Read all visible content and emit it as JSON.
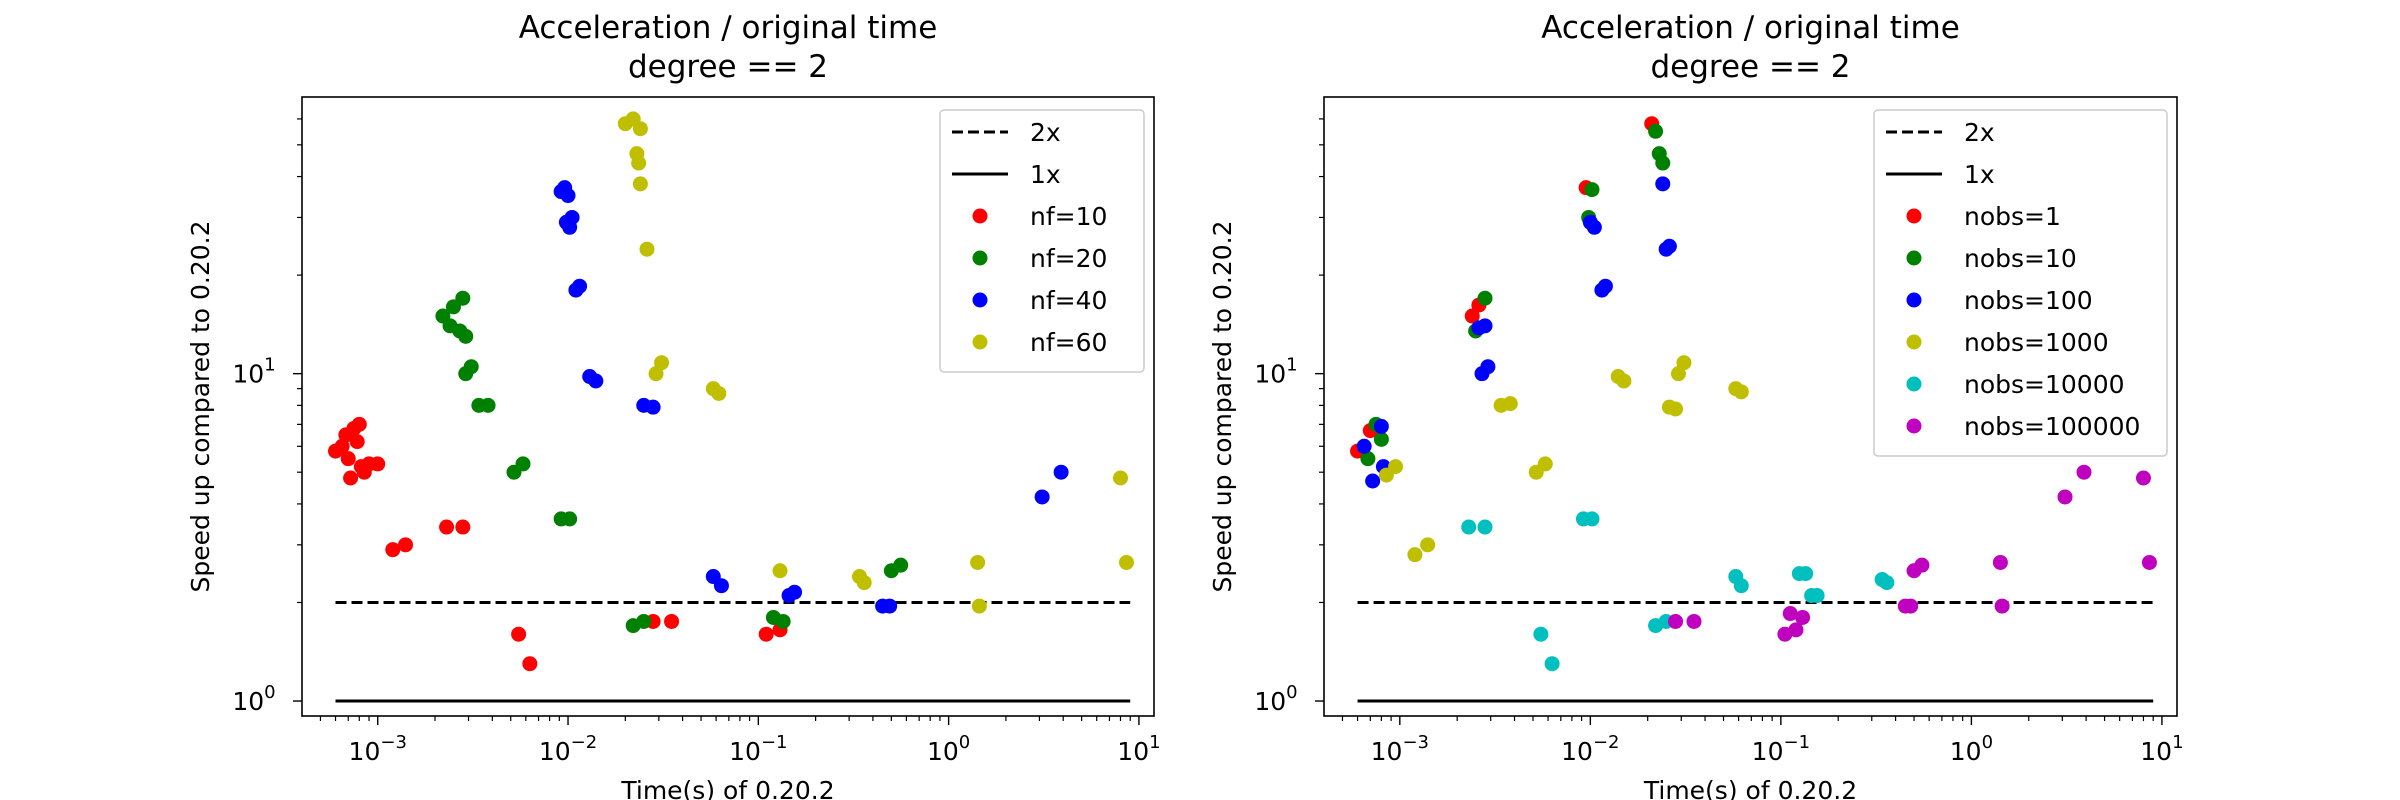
{
  "chart_data": [
    {
      "type": "scatter",
      "title": "Acceleration / original time",
      "subtitle": "degree == 2",
      "xlabel": "Time(s) of 0.20.2",
      "ylabel": "Speed up compared to 0.20.2",
      "x_scale": "log",
      "y_scale": "log",
      "xlim": [
        0.0004,
        12
      ],
      "ylim": [
        0.9,
        70
      ],
      "x_ticks": [
        {
          "v": 0.001,
          "b": "10",
          "e": "−3"
        },
        {
          "v": 0.01,
          "b": "10",
          "e": "−2"
        },
        {
          "v": 0.1,
          "b": "10",
          "e": "−1"
        },
        {
          "v": 1,
          "b": "10",
          "e": "0"
        },
        {
          "v": 10,
          "b": "10",
          "e": "1"
        }
      ],
      "y_ticks": [
        {
          "v": 1,
          "b": "10",
          "e": "0"
        },
        {
          "v": 10,
          "b": "10",
          "e": "1"
        }
      ],
      "grid": false,
      "legend_position": "top-right",
      "reference_lines": [
        {
          "name": "2x",
          "y": 2,
          "x_range": [
            0.0006,
            9
          ],
          "style": "dashed",
          "color": "#000000"
        },
        {
          "name": "1x",
          "y": 1,
          "x_range": [
            0.0006,
            9
          ],
          "style": "solid",
          "color": "#000000"
        }
      ],
      "series": [
        {
          "name": "nf=10",
          "color": "#ff0000",
          "points": [
            [
              0.0006,
              5.8
            ],
            [
              0.00065,
              6.0
            ],
            [
              0.0007,
              5.5
            ],
            [
              0.00068,
              6.5
            ],
            [
              0.00075,
              6.8
            ],
            [
              0.0008,
              7.0
            ],
            [
              0.00078,
              6.2
            ],
            [
              0.00072,
              4.8
            ],
            [
              0.00085,
              5.0
            ],
            [
              0.0009,
              5.3
            ],
            [
              0.00082,
              5.2
            ],
            [
              0.001,
              5.3
            ],
            [
              0.0012,
              2.9
            ],
            [
              0.0014,
              3.0
            ],
            [
              0.0023,
              3.4
            ],
            [
              0.0028,
              3.4
            ],
            [
              0.0055,
              1.6
            ],
            [
              0.0063,
              1.3
            ],
            [
              0.028,
              1.75
            ],
            [
              0.035,
              1.75
            ],
            [
              0.11,
              1.6
            ],
            [
              0.13,
              1.65
            ]
          ]
        },
        {
          "name": "nf=20",
          "color": "#008000",
          "points": [
            [
              0.0022,
              15.0
            ],
            [
              0.0024,
              14.0
            ],
            [
              0.0025,
              16.0
            ],
            [
              0.0027,
              13.5
            ],
            [
              0.0028,
              17.0
            ],
            [
              0.0029,
              13.0
            ],
            [
              0.0029,
              10.0
            ],
            [
              0.0031,
              10.5
            ],
            [
              0.0034,
              8.0
            ],
            [
              0.0038,
              8.0
            ],
            [
              0.0052,
              5.0
            ],
            [
              0.0058,
              5.3
            ],
            [
              0.0092,
              3.6
            ],
            [
              0.0102,
              3.6
            ],
            [
              0.022,
              1.7
            ],
            [
              0.025,
              1.75
            ],
            [
              0.12,
              1.8
            ],
            [
              0.135,
              1.75
            ],
            [
              0.5,
              2.5
            ],
            [
              0.56,
              2.6
            ]
          ]
        },
        {
          "name": "nf=40",
          "color": "#0000ff",
          "points": [
            [
              0.0092,
              36.0
            ],
            [
              0.0096,
              37.0
            ],
            [
              0.01,
              35.0
            ],
            [
              0.0098,
              29.0
            ],
            [
              0.0102,
              28.0
            ],
            [
              0.0105,
              30.0
            ],
            [
              0.011,
              18.0
            ],
            [
              0.0115,
              18.5
            ],
            [
              0.013,
              9.8
            ],
            [
              0.014,
              9.5
            ],
            [
              0.025,
              8.0
            ],
            [
              0.028,
              7.9
            ],
            [
              0.058,
              2.4
            ],
            [
              0.064,
              2.25
            ],
            [
              0.145,
              2.1
            ],
            [
              0.155,
              2.15
            ],
            [
              0.45,
              1.95
            ],
            [
              0.49,
              1.95
            ],
            [
              3.1,
              4.2
            ],
            [
              3.9,
              5.0
            ]
          ]
        },
        {
          "name": "nf=60",
          "color": "#bfbf00",
          "points": [
            [
              0.02,
              58.0
            ],
            [
              0.022,
              60.0
            ],
            [
              0.024,
              56.0
            ],
            [
              0.023,
              47.0
            ],
            [
              0.0235,
              44.0
            ],
            [
              0.024,
              38.0
            ],
            [
              0.026,
              24.0
            ],
            [
              0.029,
              10.0
            ],
            [
              0.031,
              10.8
            ],
            [
              0.058,
              9.0
            ],
            [
              0.062,
              8.7
            ],
            [
              0.13,
              2.5
            ],
            [
              0.34,
              2.4
            ],
            [
              0.36,
              2.3
            ],
            [
              1.42,
              2.65
            ],
            [
              1.45,
              1.95
            ],
            [
              8.0,
              4.8
            ],
            [
              8.6,
              2.65
            ]
          ]
        }
      ]
    },
    {
      "type": "scatter",
      "title": "Acceleration / original time",
      "subtitle": "degree == 2",
      "xlabel": "Time(s) of 0.20.2",
      "ylabel": "Speed up compared to 0.20.2",
      "x_scale": "log",
      "y_scale": "log",
      "xlim": [
        0.0004,
        12
      ],
      "ylim": [
        0.9,
        70
      ],
      "x_ticks": [
        {
          "v": 0.001,
          "b": "10",
          "e": "−3"
        },
        {
          "v": 0.01,
          "b": "10",
          "e": "−2"
        },
        {
          "v": 0.1,
          "b": "10",
          "e": "−1"
        },
        {
          "v": 1,
          "b": "10",
          "e": "0"
        },
        {
          "v": 10,
          "b": "10",
          "e": "1"
        }
      ],
      "y_ticks": [
        {
          "v": 1,
          "b": "10",
          "e": "0"
        },
        {
          "v": 10,
          "b": "10",
          "e": "1"
        }
      ],
      "grid": false,
      "legend_position": "top-right",
      "reference_lines": [
        {
          "name": "2x",
          "y": 2,
          "x_range": [
            0.0006,
            9
          ],
          "style": "dashed",
          "color": "#000000"
        },
        {
          "name": "1x",
          "y": 1,
          "x_range": [
            0.0006,
            9
          ],
          "style": "solid",
          "color": "#000000"
        }
      ],
      "series": [
        {
          "name": "nobs=1",
          "color": "#ff0000",
          "points": [
            [
              0.0006,
              5.8
            ],
            [
              0.0007,
              6.7
            ],
            [
              0.0024,
              15.0
            ],
            [
              0.0026,
              16.2
            ],
            [
              0.0095,
              37.0
            ],
            [
              0.021,
              58.0
            ]
          ]
        },
        {
          "name": "nobs=10",
          "color": "#008000",
          "points": [
            [
              0.00068,
              5.5
            ],
            [
              0.00075,
              7.0
            ],
            [
              0.0008,
              6.3
            ],
            [
              0.0025,
              13.5
            ],
            [
              0.0028,
              17.0
            ],
            [
              0.0098,
              30.0
            ],
            [
              0.0102,
              36.5
            ],
            [
              0.023,
              47.0
            ],
            [
              0.024,
              44.0
            ],
            [
              0.022,
              55.0
            ]
          ]
        },
        {
          "name": "nobs=100",
          "color": "#0000ff",
          "points": [
            [
              0.00065,
              6.0
            ],
            [
              0.00072,
              4.7
            ],
            [
              0.0008,
              6.9
            ],
            [
              0.00082,
              5.2
            ],
            [
              0.0027,
              10.0
            ],
            [
              0.0029,
              10.5
            ],
            [
              0.0026,
              13.8
            ],
            [
              0.0028,
              14.0
            ],
            [
              0.01,
              29.0
            ],
            [
              0.0105,
              28.0
            ],
            [
              0.0115,
              18.0
            ],
            [
              0.012,
              18.5
            ],
            [
              0.024,
              38.0
            ],
            [
              0.025,
              24.0
            ],
            [
              0.026,
              24.5
            ]
          ]
        },
        {
          "name": "nobs=1000",
          "color": "#bfbf00",
          "points": [
            [
              0.00085,
              4.9
            ],
            [
              0.00095,
              5.2
            ],
            [
              0.0012,
              2.8
            ],
            [
              0.0014,
              3.0
            ],
            [
              0.0034,
              8.0
            ],
            [
              0.0038,
              8.1
            ],
            [
              0.0052,
              5.0
            ],
            [
              0.0058,
              5.3
            ],
            [
              0.014,
              9.8
            ],
            [
              0.015,
              9.5
            ],
            [
              0.026,
              7.9
            ],
            [
              0.028,
              7.8
            ],
            [
              0.029,
              10.0
            ],
            [
              0.031,
              10.8
            ],
            [
              0.058,
              9.0
            ],
            [
              0.062,
              8.8
            ]
          ]
        },
        {
          "name": "nobs=10000",
          "color": "#00bfbf",
          "points": [
            [
              0.0023,
              3.4
            ],
            [
              0.0028,
              3.4
            ],
            [
              0.0092,
              3.6
            ],
            [
              0.0102,
              3.6
            ],
            [
              0.0055,
              1.6
            ],
            [
              0.0063,
              1.3
            ],
            [
              0.022,
              1.7
            ],
            [
              0.025,
              1.75
            ],
            [
              0.058,
              2.4
            ],
            [
              0.062,
              2.25
            ],
            [
              0.125,
              2.45
            ],
            [
              0.135,
              2.45
            ],
            [
              0.145,
              2.1
            ],
            [
              0.155,
              2.1
            ],
            [
              0.34,
              2.35
            ],
            [
              0.36,
              2.3
            ]
          ]
        },
        {
          "name": "nobs=100000",
          "color": "#bf00bf",
          "points": [
            [
              0.028,
              1.75
            ],
            [
              0.035,
              1.75
            ],
            [
              0.105,
              1.6
            ],
            [
              0.112,
              1.85
            ],
            [
              0.12,
              1.65
            ],
            [
              0.13,
              1.8
            ],
            [
              0.45,
              1.95
            ],
            [
              0.48,
              1.95
            ],
            [
              0.5,
              2.5
            ],
            [
              0.55,
              2.6
            ],
            [
              1.42,
              2.65
            ],
            [
              1.45,
              1.95
            ],
            [
              3.1,
              4.2
            ],
            [
              3.9,
              5.0
            ],
            [
              8.0,
              4.8
            ],
            [
              8.6,
              2.65
            ]
          ]
        }
      ]
    }
  ]
}
